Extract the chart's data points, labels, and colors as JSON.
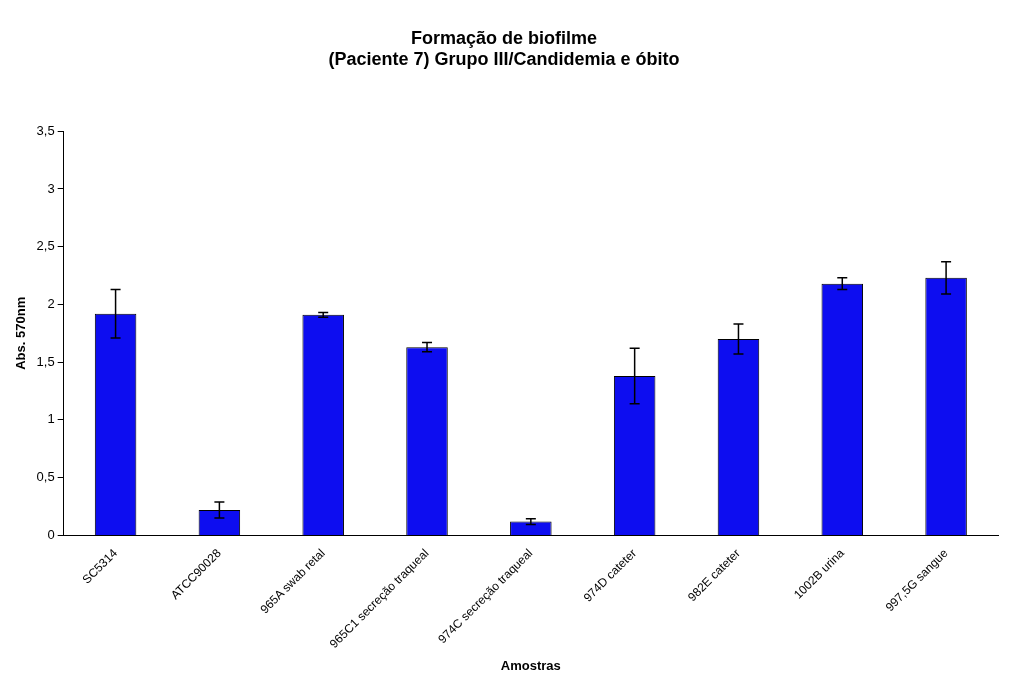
{
  "chart_data": {
    "type": "bar",
    "title": "Formação de biofilme\n(Paciente 7) Grupo III/Candidemia e óbito",
    "xlabel": "Amostras",
    "ylabel": "Abs. 570nm",
    "categories": [
      "SC5314",
      "ATCC90028",
      "965A swab retal",
      "965C1 secreção traqueal",
      "974C secreção traqueal",
      "974D cateter",
      "982E cateter",
      "1002B urina",
      "997,5G sangue"
    ],
    "values": [
      1.92,
      0.22,
      1.91,
      1.63,
      0.12,
      1.38,
      1.7,
      2.18,
      2.23
    ],
    "errors": [
      0.21,
      0.07,
      0.02,
      0.04,
      0.025,
      0.24,
      0.13,
      0.05,
      0.14
    ],
    "color": "#0d0df0",
    "ylim": [
      0,
      3.5
    ],
    "yticks": [
      0,
      {
        "value": 0.5,
        "label": "0,5"
      },
      1,
      {
        "value": 1.5,
        "label": "1,5"
      },
      2,
      {
        "value": 2.5,
        "label": "2,5"
      },
      3,
      {
        "value": 3.5,
        "label": "3,5"
      }
    ],
    "grid": false,
    "legend": false
  }
}
